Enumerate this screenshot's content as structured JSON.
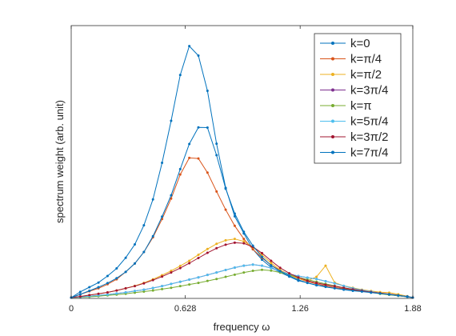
{
  "chart_data": {
    "type": "line",
    "xlabel": "frequency ω",
    "ylabel": "spectrum weight    (arb. unit)",
    "xlim": [
      0,
      1.88
    ],
    "ylim": [
      0,
      1.0
    ],
    "xticks": [
      0,
      0.628,
      1.26,
      1.88
    ],
    "xtick_labels": [
      "0",
      "0.628",
      "1.26",
      "1.88"
    ],
    "yticks": [],
    "grid": false,
    "legend_position": "top-right",
    "series": [
      {
        "name": "k=0",
        "color": "#0072BD",
        "x": [
          0,
          0.05,
          0.1,
          0.15,
          0.2,
          0.25,
          0.3,
          0.35,
          0.4,
          0.45,
          0.5,
          0.55,
          0.6,
          0.65,
          0.7,
          0.75,
          0.8,
          0.85,
          0.9,
          0.95,
          1.0,
          1.05,
          1.1,
          1.15,
          1.2,
          1.25,
          1.3,
          1.35,
          1.4,
          1.45,
          1.5,
          1.55,
          1.6,
          1.65,
          1.7,
          1.75,
          1.8,
          1.85,
          1.88
        ],
        "y": [
          0.003,
          0.024,
          0.041,
          0.058,
          0.082,
          0.11,
          0.149,
          0.198,
          0.268,
          0.363,
          0.497,
          0.651,
          0.819,
          0.925,
          0.89,
          0.761,
          0.567,
          0.405,
          0.301,
          0.238,
          0.18,
          0.142,
          0.114,
          0.095,
          0.08,
          0.065,
          0.057,
          0.048,
          0.045,
          0.04,
          0.034,
          0.03,
          0.027,
          0.023,
          0.02,
          0.014,
          0.011,
          0.006,
          0.003
        ]
      },
      {
        "name": "k=π/4",
        "color": "#D95319",
        "x": [
          0,
          0.05,
          0.1,
          0.15,
          0.2,
          0.25,
          0.3,
          0.35,
          0.4,
          0.45,
          0.5,
          0.55,
          0.6,
          0.65,
          0.7,
          0.75,
          0.8,
          0.85,
          0.9,
          0.95,
          1.0,
          1.05,
          1.1,
          1.15,
          1.2,
          1.25,
          1.3,
          1.35,
          1.4,
          1.45,
          1.5,
          1.55,
          1.6,
          1.65,
          1.7,
          1.75,
          1.8,
          1.85,
          1.88
        ],
        "y": [
          0.003,
          0.015,
          0.026,
          0.037,
          0.052,
          0.07,
          0.097,
          0.128,
          0.17,
          0.224,
          0.291,
          0.366,
          0.454,
          0.515,
          0.513,
          0.461,
          0.392,
          0.325,
          0.266,
          0.218,
          0.18,
          0.149,
          0.122,
          0.103,
          0.088,
          0.073,
          0.062,
          0.053,
          0.046,
          0.04,
          0.036,
          0.032,
          0.027,
          0.023,
          0.02,
          0.016,
          0.012,
          0.007,
          0.003
        ]
      },
      {
        "name": "k=π/2",
        "color": "#EDB120",
        "x": [
          0,
          0.05,
          0.1,
          0.15,
          0.2,
          0.25,
          0.3,
          0.35,
          0.4,
          0.45,
          0.5,
          0.55,
          0.6,
          0.65,
          0.7,
          0.75,
          0.8,
          0.85,
          0.9,
          0.95,
          1.0,
          1.05,
          1.1,
          1.15,
          1.2,
          1.25,
          1.3,
          1.35,
          1.4,
          1.45,
          1.5,
          1.55,
          1.6,
          1.65,
          1.7,
          1.75,
          1.8,
          1.85,
          1.88
        ],
        "y": [
          0.003,
          0.007,
          0.012,
          0.017,
          0.022,
          0.029,
          0.037,
          0.046,
          0.057,
          0.07,
          0.085,
          0.101,
          0.119,
          0.138,
          0.16,
          0.181,
          0.2,
          0.213,
          0.218,
          0.209,
          0.188,
          0.159,
          0.13,
          0.104,
          0.086,
          0.072,
          0.065,
          0.079,
          0.12,
          0.058,
          0.046,
          0.039,
          0.032,
          0.027,
          0.023,
          0.021,
          0.015,
          0.008,
          0.003
        ]
      },
      {
        "name": "k=3π/4",
        "color": "#7E2F8E",
        "x": [
          0,
          0.05,
          0.1,
          0.15,
          0.2,
          0.25,
          0.3,
          0.35,
          0.4,
          0.45,
          0.5,
          0.55,
          0.6,
          0.65,
          0.7,
          0.75,
          0.8,
          0.85,
          0.9,
          0.95,
          1.0,
          1.05,
          1.1,
          1.15,
          1.2,
          1.25,
          1.3,
          1.35,
          1.4,
          1.45,
          1.5,
          1.55,
          1.6,
          1.65,
          1.7,
          1.75,
          1.8,
          1.85,
          1.88
        ],
        "y": [
          0.003,
          0.005,
          0.008,
          0.011,
          0.014,
          0.018,
          0.022,
          0.027,
          0.032,
          0.038,
          0.045,
          0.053,
          0.061,
          0.069,
          0.077,
          0.086,
          0.095,
          0.104,
          0.113,
          0.12,
          0.124,
          0.12,
          0.111,
          0.099,
          0.089,
          0.082,
          0.076,
          0.071,
          0.063,
          0.055,
          0.046,
          0.037,
          0.03,
          0.025,
          0.019,
          0.014,
          0.01,
          0.006,
          0.003
        ]
      },
      {
        "name": "k=π",
        "color": "#77AC30",
        "x": [
          0,
          0.05,
          0.1,
          0.15,
          0.2,
          0.25,
          0.3,
          0.35,
          0.4,
          0.45,
          0.5,
          0.55,
          0.6,
          0.65,
          0.7,
          0.75,
          0.8,
          0.85,
          0.9,
          0.95,
          1.0,
          1.05,
          1.1,
          1.15,
          1.2,
          1.25,
          1.3,
          1.35,
          1.4,
          1.45,
          1.5,
          1.55,
          1.6,
          1.65,
          1.7,
          1.75,
          1.8,
          1.85,
          1.88
        ],
        "y": [
          0.003,
          0.004,
          0.006,
          0.008,
          0.011,
          0.014,
          0.017,
          0.021,
          0.025,
          0.029,
          0.034,
          0.039,
          0.045,
          0.051,
          0.057,
          0.064,
          0.071,
          0.079,
          0.087,
          0.095,
          0.101,
          0.105,
          0.102,
          0.095,
          0.086,
          0.077,
          0.069,
          0.061,
          0.053,
          0.046,
          0.039,
          0.033,
          0.027,
          0.022,
          0.017,
          0.013,
          0.009,
          0.006,
          0.003
        ]
      },
      {
        "name": "k=5π/4",
        "color": "#4DBEEE",
        "x": [
          0,
          0.05,
          0.1,
          0.15,
          0.2,
          0.25,
          0.3,
          0.35,
          0.4,
          0.45,
          0.5,
          0.55,
          0.6,
          0.65,
          0.7,
          0.75,
          0.8,
          0.85,
          0.9,
          0.95,
          1.0,
          1.05,
          1.1,
          1.15,
          1.2,
          1.25,
          1.3,
          1.35,
          1.4,
          1.45,
          1.5,
          1.55,
          1.6,
          1.65,
          1.7,
          1.75,
          1.8,
          1.85,
          1.88
        ],
        "y": [
          0.003,
          0.005,
          0.008,
          0.011,
          0.014,
          0.018,
          0.022,
          0.027,
          0.032,
          0.038,
          0.045,
          0.053,
          0.061,
          0.069,
          0.077,
          0.086,
          0.095,
          0.104,
          0.113,
          0.12,
          0.124,
          0.12,
          0.111,
          0.099,
          0.089,
          0.082,
          0.076,
          0.071,
          0.063,
          0.055,
          0.046,
          0.037,
          0.03,
          0.025,
          0.019,
          0.014,
          0.01,
          0.006,
          0.003
        ]
      },
      {
        "name": "k=3π/2",
        "color": "#A2142F",
        "x": [
          0,
          0.05,
          0.1,
          0.15,
          0.2,
          0.25,
          0.3,
          0.35,
          0.4,
          0.45,
          0.5,
          0.55,
          0.6,
          0.65,
          0.7,
          0.75,
          0.8,
          0.85,
          0.9,
          0.95,
          1.0,
          1.05,
          1.1,
          1.15,
          1.2,
          1.25,
          1.3,
          1.35,
          1.4,
          1.45,
          1.5,
          1.55,
          1.6,
          1.65,
          1.7,
          1.75,
          1.8,
          1.85,
          1.88
        ],
        "y": [
          0.003,
          0.007,
          0.012,
          0.017,
          0.022,
          0.029,
          0.037,
          0.045,
          0.055,
          0.067,
          0.08,
          0.095,
          0.111,
          0.129,
          0.148,
          0.167,
          0.184,
          0.197,
          0.204,
          0.202,
          0.189,
          0.166,
          0.138,
          0.112,
          0.092,
          0.077,
          0.065,
          0.057,
          0.05,
          0.045,
          0.039,
          0.033,
          0.028,
          0.023,
          0.019,
          0.015,
          0.011,
          0.007,
          0.003
        ]
      },
      {
        "name": "k=7π/4",
        "color": "#0072BD",
        "x": [
          0,
          0.05,
          0.1,
          0.15,
          0.2,
          0.25,
          0.3,
          0.35,
          0.4,
          0.45,
          0.5,
          0.55,
          0.6,
          0.65,
          0.7,
          0.75,
          0.8,
          0.85,
          0.9,
          0.95,
          1.0,
          1.05,
          1.1,
          1.15,
          1.2,
          1.25,
          1.3,
          1.35,
          1.4,
          1.45,
          1.5,
          1.55,
          1.6,
          1.65,
          1.7,
          1.75,
          1.8,
          1.85,
          1.88
        ],
        "y": [
          0.003,
          0.015,
          0.028,
          0.041,
          0.056,
          0.074,
          0.097,
          0.128,
          0.17,
          0.228,
          0.3,
          0.378,
          0.474,
          0.566,
          0.627,
          0.626,
          0.525,
          0.402,
          0.311,
          0.244,
          0.193,
          0.152,
          0.121,
          0.1,
          0.083,
          0.068,
          0.057,
          0.049,
          0.042,
          0.037,
          0.032,
          0.028,
          0.025,
          0.021,
          0.018,
          0.015,
          0.011,
          0.007,
          0.003
        ]
      }
    ]
  }
}
